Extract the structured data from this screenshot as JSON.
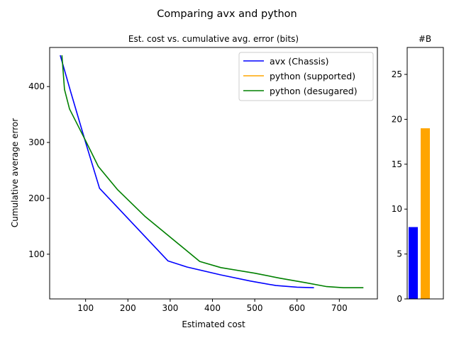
{
  "figure": {
    "title": "Comparing avx and python"
  },
  "chart_data": [
    {
      "type": "line",
      "title": "Est. cost vs. cumulative avg. error (bits)",
      "xlabel": "Estimated cost",
      "ylabel": "Cumulative average error",
      "xlim": [
        15,
        790
      ],
      "ylim": [
        20,
        470
      ],
      "xticks": [
        100,
        200,
        300,
        400,
        500,
        600,
        700
      ],
      "yticks": [
        100,
        200,
        300,
        400
      ],
      "grid": false,
      "legend_position": "top-right",
      "series": [
        {
          "name": "avx (Chassis)",
          "color": "#0000ff",
          "points": [
            [
              40,
              456
            ],
            [
              65,
              390
            ],
            [
              100,
              300
            ],
            [
              133,
              218
            ],
            [
              295,
              88
            ],
            [
              340,
              77
            ],
            [
              420,
              63
            ],
            [
              490,
              52
            ],
            [
              550,
              44
            ],
            [
              600,
              41
            ],
            [
              640,
              40
            ]
          ]
        },
        {
          "name": "python (supported)",
          "color": "#ffa500",
          "points": []
        },
        {
          "name": "python (desugared)",
          "color": "#008000",
          "points": [
            [
              44,
              456
            ],
            [
              50,
              395
            ],
            [
              62,
              360
            ],
            [
              100,
              303
            ],
            [
              130,
              257
            ],
            [
              175,
              216
            ],
            [
              240,
              168
            ],
            [
              370,
              87
            ],
            [
              420,
              76
            ],
            [
              500,
              66
            ],
            [
              560,
              57
            ],
            [
              620,
              49
            ],
            [
              670,
              42
            ],
            [
              710,
              40
            ],
            [
              757,
              40
            ]
          ]
        }
      ]
    },
    {
      "type": "bar",
      "title": "#B",
      "categories": [
        "avx (Chassis)",
        "python (supported)"
      ],
      "values": [
        8,
        19
      ],
      "colors": [
        "#0000ff",
        "#ffa500"
      ],
      "ylim": [
        0,
        28
      ],
      "yticks": [
        0,
        5,
        10,
        15,
        20,
        25
      ],
      "grid": false
    }
  ]
}
